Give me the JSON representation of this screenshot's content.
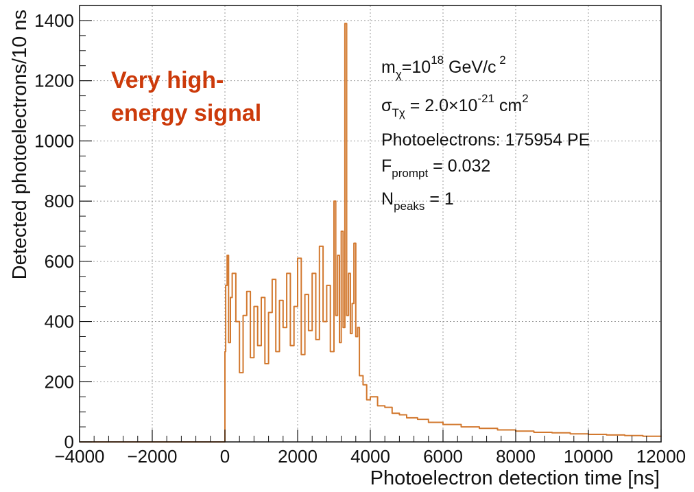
{
  "chart_data": {
    "type": "line",
    "xlabel": "Photoelectron detection time [ns]",
    "ylabel": "Detected photoelectrons/10 ns",
    "xlim": [
      -4000,
      12000
    ],
    "ylim": [
      0,
      1450
    ],
    "xticks": [
      -4000,
      -2000,
      0,
      2000,
      4000,
      6000,
      8000,
      10000,
      12000
    ],
    "xtick_labels": [
      "−4000",
      "−2000",
      "0",
      "2000",
      "4000",
      "6000",
      "8000",
      "10000",
      "12000"
    ],
    "yticks": [
      0,
      200,
      400,
      600,
      800,
      1000,
      1200,
      1400
    ],
    "ytick_labels": [
      "0",
      "200",
      "400",
      "600",
      "800",
      "1000",
      "1200",
      "1400"
    ],
    "grid": true,
    "series_color": "#d2782e",
    "annotation_color": "#cc3a0a",
    "annotation": {
      "line1": "Very high-",
      "line2": "energy signal"
    },
    "info_box": {
      "mass_label": "m",
      "mass_sub": "χ",
      "mass_eq": "=10",
      "mass_exp": "18",
      "mass_unit": " GeV/c",
      "mass_unit_exp": " 2",
      "sigma_label": "σ",
      "sigma_sub": "Tχ",
      "sigma_eq": " = 2.0×10",
      "sigma_exp": "-21",
      "sigma_unit": " cm",
      "sigma_unit_exp": "2",
      "pe_line": "Photoelectrons: 175954 PE",
      "fprompt_label": "F",
      "fprompt_sub": "prompt",
      "fprompt_eq": " = 0.032",
      "npeaks_label": "N",
      "npeaks_sub": "peaks",
      "npeaks_eq": " = 1"
    },
    "x": [
      -4000,
      -10,
      0,
      20,
      60,
      100,
      150,
      200,
      300,
      400,
      500,
      600,
      700,
      800,
      900,
      1000,
      1100,
      1200,
      1300,
      1400,
      1500,
      1600,
      1700,
      1800,
      1900,
      2000,
      2100,
      2200,
      2300,
      2400,
      2500,
      2600,
      2700,
      2800,
      2900,
      3000,
      3050,
      3100,
      3150,
      3200,
      3250,
      3300,
      3350,
      3400,
      3450,
      3500,
      3550,
      3600,
      3650,
      3700,
      3800,
      3900,
      4000,
      4200,
      4400,
      4600,
      4800,
      5000,
      5300,
      5600,
      6000,
      6500,
      7000,
      7500,
      8000,
      8500,
      9000,
      9500,
      10000,
      10500,
      11000,
      11500,
      12000
    ],
    "y": [
      0,
      0,
      300,
      520,
      620,
      330,
      480,
      560,
      400,
      230,
      420,
      500,
      280,
      450,
      320,
      480,
      260,
      430,
      540,
      300,
      470,
      380,
      560,
      320,
      450,
      610,
      290,
      490,
      370,
      560,
      340,
      650,
      400,
      520,
      300,
      800,
      420,
      620,
      330,
      700,
      380,
      1390,
      420,
      560,
      360,
      460,
      660,
      350,
      380,
      220,
      190,
      140,
      150,
      120,
      115,
      95,
      90,
      80,
      75,
      65,
      58,
      50,
      45,
      40,
      36,
      32,
      30,
      27,
      25,
      23,
      21,
      19,
      18
    ]
  }
}
